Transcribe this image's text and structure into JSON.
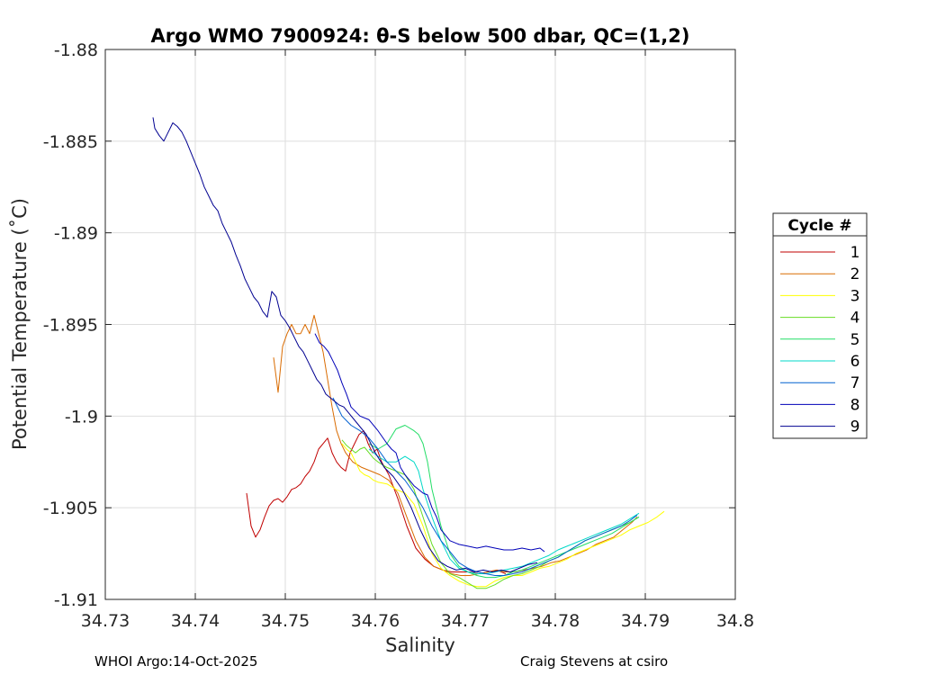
{
  "chart_data": {
    "type": "line",
    "title": "Argo WMO 7900924: θ-S below 500 dbar,  QC=(1,2)",
    "xlabel": "Salinity",
    "ylabel": "Potential Temperature (˚C)",
    "xlim": [
      34.73,
      34.8
    ],
    "ylim": [
      -1.91,
      -1.88
    ],
    "xticks": [
      "34.73",
      "34.74",
      "34.75",
      "34.76",
      "34.77",
      "34.78",
      "34.79",
      "34.8"
    ],
    "yticks": [
      "-1.88",
      "-1.885",
      "-1.89",
      "-1.895",
      "-1.9",
      "-1.905",
      "-1.91"
    ],
    "grid": true,
    "legend": {
      "title": "Cycle #",
      "placement": "right-outside"
    },
    "series": [
      {
        "name": "1",
        "color": "#c00000",
        "x": [
          34.7457,
          34.7462,
          34.7467,
          34.7472,
          34.7477,
          34.7482,
          34.7487,
          34.7492,
          34.7497,
          34.7502,
          34.7507,
          34.7512,
          34.7517,
          34.7522,
          34.7527,
          34.7532,
          34.7537,
          34.7542,
          34.7547,
          34.7552,
          34.7557,
          34.7562,
          34.7567,
          34.7572,
          34.7577,
          34.7582,
          34.7587,
          34.7592,
          34.7597,
          34.7602,
          34.7607,
          34.7615,
          34.7625,
          34.7635,
          34.7645,
          34.7655,
          34.7665,
          34.7675,
          34.7685,
          34.7695,
          34.7705,
          34.7715,
          34.7725,
          34.7735,
          34.7745
        ],
        "y": [
          -1.9042,
          -1.906,
          -1.9066,
          -1.9062,
          -1.9055,
          -1.9049,
          -1.9046,
          -1.9045,
          -1.9047,
          -1.9044,
          -1.904,
          -1.9039,
          -1.9037,
          -1.9033,
          -1.903,
          -1.9025,
          -1.9018,
          -1.9015,
          -1.9012,
          -1.902,
          -1.9025,
          -1.9028,
          -1.903,
          -1.902,
          -1.9015,
          -1.901,
          -1.9008,
          -1.9015,
          -1.902,
          -1.9018,
          -1.9025,
          -1.9032,
          -1.9045,
          -1.906,
          -1.9072,
          -1.9078,
          -1.9082,
          -1.9084,
          -1.9085,
          -1.9085,
          -1.9085,
          -1.9086,
          -1.9085,
          -1.9084,
          -1.9086
        ]
      },
      {
        "name": "2",
        "color": "#d96b00",
        "x": [
          34.7487,
          34.7492,
          34.7497,
          34.7502,
          34.7507,
          34.7512,
          34.7517,
          34.7522,
          34.7527,
          34.7532,
          34.7537,
          34.7542,
          34.7547,
          34.7552,
          34.7557,
          34.7562,
          34.7567,
          34.7575,
          34.7585,
          34.7595,
          34.7605,
          34.7615,
          34.7625,
          34.7635,
          34.7645,
          34.7655,
          34.7665,
          34.7675,
          34.7685,
          34.7695,
          34.7705,
          34.7715,
          34.7725,
          34.7735,
          34.7745,
          34.7755,
          34.7765,
          34.7775,
          34.7785,
          34.7795,
          34.7805,
          34.7815,
          34.7825,
          34.7835,
          34.7845,
          34.7855,
          34.7865,
          34.7875,
          34.7885,
          34.7891
        ],
        "y": [
          -1.8968,
          -1.8987,
          -1.8962,
          -1.8955,
          -1.895,
          -1.8955,
          -1.8955,
          -1.895,
          -1.8955,
          -1.8945,
          -1.8955,
          -1.8965,
          -1.898,
          -1.8995,
          -1.9008,
          -1.9015,
          -1.902,
          -1.9025,
          -1.9028,
          -1.903,
          -1.9032,
          -1.9035,
          -1.9042,
          -1.9055,
          -1.9068,
          -1.9077,
          -1.9082,
          -1.9084,
          -1.9086,
          -1.9087,
          -1.9087,
          -1.9086,
          -1.9085,
          -1.9084,
          -1.9085,
          -1.9085,
          -1.9084,
          -1.9083,
          -1.9082,
          -1.908,
          -1.9079,
          -1.9077,
          -1.9075,
          -1.9073,
          -1.907,
          -1.9068,
          -1.9066,
          -1.9062,
          -1.9058,
          -1.9055
        ]
      },
      {
        "name": "3",
        "color": "#ffff00",
        "x": [
          34.7563,
          34.7568,
          34.7573,
          34.7578,
          34.7583,
          34.7588,
          34.7593,
          34.7598,
          34.7603,
          34.7613,
          34.7623,
          34.7633,
          34.7643,
          34.7653,
          34.7663,
          34.7673,
          34.7683,
          34.7693,
          34.7703,
          34.7713,
          34.7723,
          34.7733,
          34.7743,
          34.7753,
          34.7763,
          34.7773,
          34.7783,
          34.7793,
          34.7803,
          34.7813,
          34.7823,
          34.7833,
          34.7843,
          34.7853,
          34.7863,
          34.7873,
          34.7883,
          34.7893,
          34.7903,
          34.7913,
          34.7921
        ],
        "y": [
          -1.9015,
          -1.9018,
          -1.902,
          -1.9025,
          -1.903,
          -1.9032,
          -1.9033,
          -1.9035,
          -1.9036,
          -1.9037,
          -1.904,
          -1.9042,
          -1.9048,
          -1.906,
          -1.9075,
          -1.9083,
          -1.9087,
          -1.909,
          -1.9092,
          -1.9093,
          -1.9093,
          -1.909,
          -1.9088,
          -1.9087,
          -1.9087,
          -1.9085,
          -1.9083,
          -1.9082,
          -1.908,
          -1.9078,
          -1.9075,
          -1.9073,
          -1.9071,
          -1.9069,
          -1.9067,
          -1.9065,
          -1.9062,
          -1.906,
          -1.9058,
          -1.9055,
          -1.9052
        ]
      },
      {
        "name": "4",
        "color": "#66dd22",
        "x": [
          34.7563,
          34.7568,
          34.7573,
          34.7578,
          34.7583,
          34.7588,
          34.7593,
          34.7598,
          34.7603,
          34.7613,
          34.7623,
          34.7633,
          34.7643,
          34.7653,
          34.7663,
          34.7673,
          34.7683,
          34.7693,
          34.7703,
          34.7713,
          34.7723,
          34.7733,
          34.7743,
          34.7753,
          34.7763,
          34.7773,
          34.7783,
          34.7793,
          34.7803,
          34.7813,
          34.7823,
          34.7833,
          34.7843,
          34.7853,
          34.7863,
          34.7873,
          34.7883,
          34.7893
        ],
        "y": [
          -1.9013,
          -1.9016,
          -1.9018,
          -1.902,
          -1.9018,
          -1.9017,
          -1.902,
          -1.9023,
          -1.9025,
          -1.9028,
          -1.903,
          -1.9032,
          -1.904,
          -1.9055,
          -1.907,
          -1.908,
          -1.9086,
          -1.9088,
          -1.9091,
          -1.9094,
          -1.9094,
          -1.9092,
          -1.9089,
          -1.9087,
          -1.9086,
          -1.9084,
          -1.9082,
          -1.9079,
          -1.9077,
          -1.9074,
          -1.9071,
          -1.9068,
          -1.9066,
          -1.9064,
          -1.9062,
          -1.906,
          -1.9058,
          -1.9055
        ]
      },
      {
        "name": "5",
        "color": "#22dd66",
        "x": [
          34.7593,
          34.7603,
          34.7613,
          34.7623,
          34.7633,
          34.7643,
          34.7648,
          34.7653,
          34.7658,
          34.7663,
          34.7673,
          34.7683,
          34.7693,
          34.7703,
          34.7713,
          34.7723,
          34.7733,
          34.7743,
          34.7753,
          34.7763,
          34.7773,
          34.7783,
          34.7793,
          34.7803,
          34.7813,
          34.7823,
          34.7833,
          34.7843,
          34.7853,
          34.7863,
          34.7873,
          34.7883,
          34.7893
        ],
        "y": [
          -1.9015,
          -1.9018,
          -1.9015,
          -1.9007,
          -1.9005,
          -1.9008,
          -1.901,
          -1.9015,
          -1.9025,
          -1.904,
          -1.906,
          -1.9075,
          -1.9082,
          -1.9085,
          -1.9087,
          -1.9088,
          -1.9088,
          -1.9087,
          -1.9085,
          -1.9084,
          -1.9082,
          -1.908,
          -1.9078,
          -1.9076,
          -1.9074,
          -1.9072,
          -1.907,
          -1.9068,
          -1.9066,
          -1.9064,
          -1.9061,
          -1.9058,
          -1.9055
        ]
      },
      {
        "name": "6",
        "color": "#00d8c8",
        "x": [
          34.7593,
          34.7603,
          34.7613,
          34.7623,
          34.7633,
          34.7643,
          34.7648,
          34.7653,
          34.7663,
          34.7673,
          34.7683,
          34.7693,
          34.7703,
          34.7713,
          34.7723,
          34.7733,
          34.7743,
          34.7753,
          34.7763,
          34.7773,
          34.7783,
          34.7793,
          34.7803,
          34.7813,
          34.7823,
          34.7833,
          34.7843,
          34.7853,
          34.7863,
          34.7873,
          34.7883,
          34.7893
        ],
        "y": [
          -1.9018,
          -1.9022,
          -1.9025,
          -1.9025,
          -1.9022,
          -1.9025,
          -1.903,
          -1.904,
          -1.9055,
          -1.9068,
          -1.9078,
          -1.9083,
          -1.9085,
          -1.9086,
          -1.9086,
          -1.9085,
          -1.9084,
          -1.9083,
          -1.9082,
          -1.908,
          -1.9078,
          -1.9076,
          -1.9073,
          -1.9071,
          -1.9069,
          -1.9067,
          -1.9065,
          -1.9063,
          -1.9061,
          -1.9059,
          -1.9056,
          -1.9053
        ]
      },
      {
        "name": "7",
        "color": "#0060d0",
        "x": [
          34.7553,
          34.7563,
          34.7573,
          34.7583,
          34.7593,
          34.7603,
          34.7613,
          34.7623,
          34.7633,
          34.7643,
          34.7653,
          34.7663,
          34.7673,
          34.7683,
          34.7693,
          34.7703,
          34.7713,
          34.7723,
          34.7733,
          34.7743,
          34.7753,
          34.7763,
          34.7773,
          34.7783,
          34.7793,
          34.7803,
          34.7813,
          34.7823,
          34.7833,
          34.7843,
          34.7853,
          34.7863,
          34.7873,
          34.7883,
          34.7891
        ],
        "y": [
          -1.899,
          -1.9,
          -1.9005,
          -1.9008,
          -1.9012,
          -1.9018,
          -1.9025,
          -1.903,
          -1.9035,
          -1.9042,
          -1.905,
          -1.906,
          -1.9068,
          -1.9074,
          -1.908,
          -1.9083,
          -1.9085,
          -1.9086,
          -1.9087,
          -1.9087,
          -1.9086,
          -1.9085,
          -1.9083,
          -1.9081,
          -1.9079,
          -1.9077,
          -1.9074,
          -1.9071,
          -1.9068,
          -1.9066,
          -1.9064,
          -1.9062,
          -1.906,
          -1.9057,
          -1.9054
        ]
      },
      {
        "name": "8",
        "color": "#0000b8",
        "x": [
          34.7533,
          34.7538,
          34.7543,
          34.7548,
          34.7553,
          34.7558,
          34.7563,
          34.7568,
          34.7573,
          34.7583,
          34.7593,
          34.7603,
          34.7613,
          34.7618,
          34.7623,
          34.7628,
          34.7633,
          34.7638,
          34.7643,
          34.7648,
          34.7653,
          34.7658,
          34.7663,
          34.7668,
          34.7673,
          34.7678,
          34.7683,
          34.7693,
          34.7703,
          34.7713,
          34.7723,
          34.7733,
          34.7743,
          34.7753,
          34.7763,
          34.7773,
          34.7783,
          34.7788
        ],
        "y": [
          -1.8955,
          -1.896,
          -1.8962,
          -1.8965,
          -1.897,
          -1.8975,
          -1.8982,
          -1.8988,
          -1.8995,
          -1.9,
          -1.9002,
          -1.9008,
          -1.9015,
          -1.9018,
          -1.902,
          -1.9028,
          -1.9032,
          -1.9035,
          -1.9038,
          -1.904,
          -1.9042,
          -1.9043,
          -1.905,
          -1.9055,
          -1.9062,
          -1.9065,
          -1.9068,
          -1.907,
          -1.9071,
          -1.9072,
          -1.9071,
          -1.9072,
          -1.9073,
          -1.9073,
          -1.9072,
          -1.9073,
          -1.9072,
          -1.9074
        ]
      },
      {
        "name": "9",
        "color": "#000090",
        "x": [
          34.7353,
          34.7355,
          34.736,
          34.7365,
          34.737,
          34.7375,
          34.738,
          34.7385,
          34.739,
          34.7395,
          34.74,
          34.7405,
          34.741,
          34.7415,
          34.742,
          34.7425,
          34.743,
          34.7435,
          34.744,
          34.7445,
          34.745,
          34.7455,
          34.746,
          34.7465,
          34.747,
          34.7475,
          34.748,
          34.7485,
          34.749,
          34.7495,
          34.75,
          34.7505,
          34.751,
          34.7515,
          34.752,
          34.7525,
          34.753,
          34.7535,
          34.754,
          34.7545,
          34.755,
          34.7555,
          34.756,
          34.7565,
          34.757,
          34.758,
          34.759,
          34.76,
          34.761,
          34.762,
          34.763,
          34.764,
          34.765,
          34.766,
          34.767,
          34.768,
          34.769,
          34.77,
          34.771,
          34.772,
          34.773,
          34.774,
          34.775,
          34.776,
          34.777,
          34.778
        ],
        "y": [
          -1.8837,
          -1.8843,
          -1.8847,
          -1.885,
          -1.8845,
          -1.884,
          -1.8842,
          -1.8845,
          -1.885,
          -1.8856,
          -1.8862,
          -1.8868,
          -1.8875,
          -1.888,
          -1.8885,
          -1.8888,
          -1.8895,
          -1.89,
          -1.8905,
          -1.8912,
          -1.8918,
          -1.8925,
          -1.893,
          -1.8935,
          -1.8938,
          -1.8943,
          -1.8946,
          -1.8932,
          -1.8935,
          -1.8945,
          -1.8948,
          -1.8952,
          -1.8957,
          -1.8962,
          -1.8965,
          -1.897,
          -1.8975,
          -1.898,
          -1.8983,
          -1.8988,
          -1.899,
          -1.8992,
          -1.8994,
          -1.8995,
          -1.8998,
          -1.9004,
          -1.901,
          -1.902,
          -1.9028,
          -1.9033,
          -1.904,
          -1.905,
          -1.9062,
          -1.9072,
          -1.9079,
          -1.9082,
          -1.9084,
          -1.9083,
          -1.9085,
          -1.9084,
          -1.9085,
          -1.9084,
          -1.9085,
          -1.9083,
          -1.9081,
          -1.908
        ]
      }
    ]
  },
  "footer": {
    "left": "WHOI Argo:14-Oct-2025",
    "right": "Craig Stevens at csiro"
  }
}
